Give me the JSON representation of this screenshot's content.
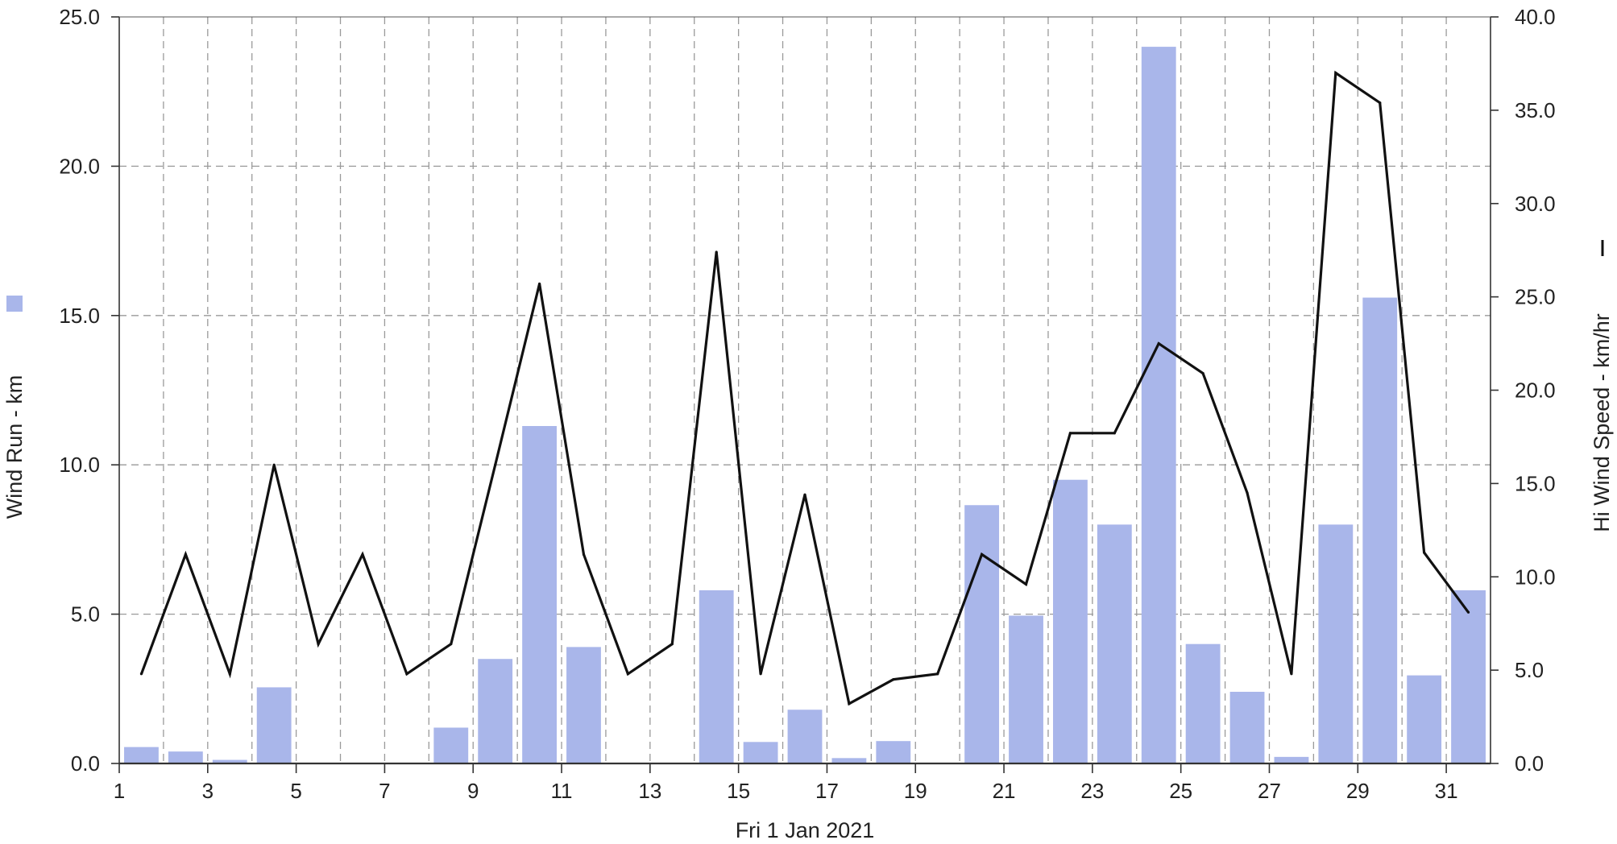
{
  "chart_data": {
    "type": "bar+line",
    "xlabel": "Fri 1 Jan 2021",
    "x_ticks": [
      "1",
      "3",
      "5",
      "7",
      "9",
      "11",
      "13",
      "15",
      "17",
      "19",
      "21",
      "23",
      "25",
      "27",
      "29",
      "31"
    ],
    "xlim": [
      1,
      32
    ],
    "grid": true,
    "left_axis": {
      "label": "Wind Run - km",
      "ticks": [
        "0.0",
        "5.0",
        "10.0",
        "15.0",
        "20.0",
        "25.0"
      ],
      "ylim": [
        0,
        25
      ]
    },
    "right_axis": {
      "label": "Hi Wind Speed - km/hr",
      "ticks": [
        "0.0",
        "5.0",
        "10.0",
        "15.0",
        "20.0",
        "25.0",
        "30.0",
        "35.0",
        "40.0"
      ],
      "ylim": [
        0,
        40
      ]
    },
    "series": [
      {
        "name": "Wind Run - km",
        "kind": "bar",
        "axis": "left",
        "color": "#a9b6ea",
        "days": [
          1,
          2,
          3,
          4,
          5,
          6,
          7,
          8,
          9,
          10,
          11,
          12,
          13,
          14,
          15,
          16,
          17,
          18,
          19,
          20,
          21,
          22,
          23,
          24,
          25,
          26,
          27,
          28,
          29,
          30,
          31
        ],
        "values": [
          0.55,
          0.4,
          0.12,
          2.55,
          0,
          0,
          0,
          1.2,
          3.5,
          11.3,
          3.9,
          0,
          0,
          5.8,
          0.72,
          1.8,
          0.18,
          0.75,
          0,
          8.65,
          4.95,
          9.5,
          8.0,
          24.0,
          4.0,
          2.4,
          0.22,
          8.0,
          15.6,
          2.95,
          5.8
        ]
      },
      {
        "name": "Hi Wind Speed - km/hr",
        "kind": "line",
        "axis": "right",
        "color": "#111111",
        "days": [
          1,
          2,
          3,
          4,
          5,
          6,
          7,
          8,
          9,
          10,
          11,
          12,
          13,
          14,
          15,
          16,
          17,
          18,
          19,
          20,
          21,
          22,
          23,
          24,
          25,
          26,
          27,
          28,
          29,
          30,
          31
        ],
        "values": [
          4.8,
          11.2,
          4.8,
          16.0,
          6.4,
          11.2,
          4.8,
          6.4,
          16.0,
          25.7,
          11.2,
          4.8,
          6.4,
          27.4,
          4.8,
          14.4,
          3.2,
          4.5,
          4.8,
          11.2,
          9.6,
          17.7,
          17.7,
          22.5,
          20.9,
          14.5,
          4.8,
          37.0,
          35.4,
          11.3,
          8.1
        ]
      }
    ]
  }
}
